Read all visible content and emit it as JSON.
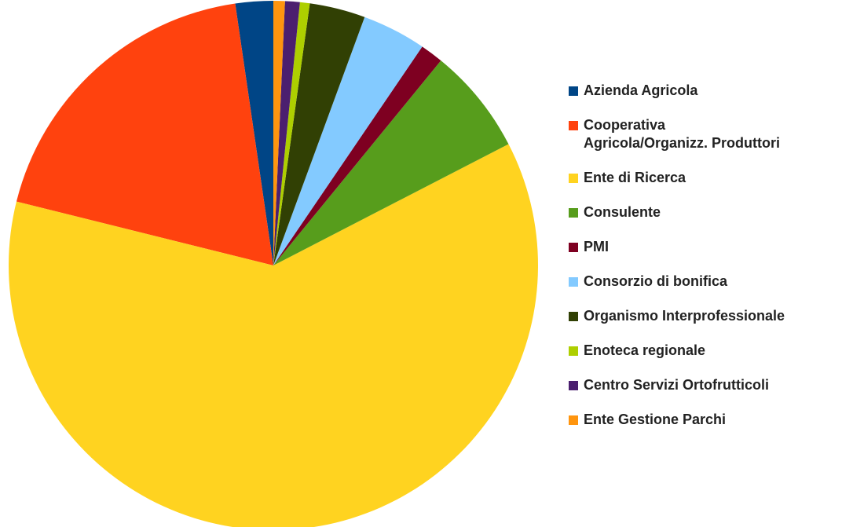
{
  "chart_data": {
    "type": "pie",
    "categories": [
      "Azienda Agricola",
      "Cooperativa\nAgricola/Organizz. Produttori",
      "Ente di Ricerca",
      "Consulente",
      "PMI",
      "Consorzio di bonifica",
      "Organismo Interprofessionale",
      "Enoteca regionale",
      "Centro Servizi Ortofrutticoli",
      "Ente Gestione Parchi"
    ],
    "values": [
      2.3,
      18.8,
      61.4,
      6.5,
      1.4,
      3.9,
      3.4,
      0.6,
      0.9,
      0.7
    ],
    "colors": [
      "#004586",
      "#ff420e",
      "#ffd320",
      "#579d1c",
      "#7e0021",
      "#83caff",
      "#314004",
      "#aecf00",
      "#4b1f6f",
      "#ff950e"
    ],
    "legend": "right"
  }
}
